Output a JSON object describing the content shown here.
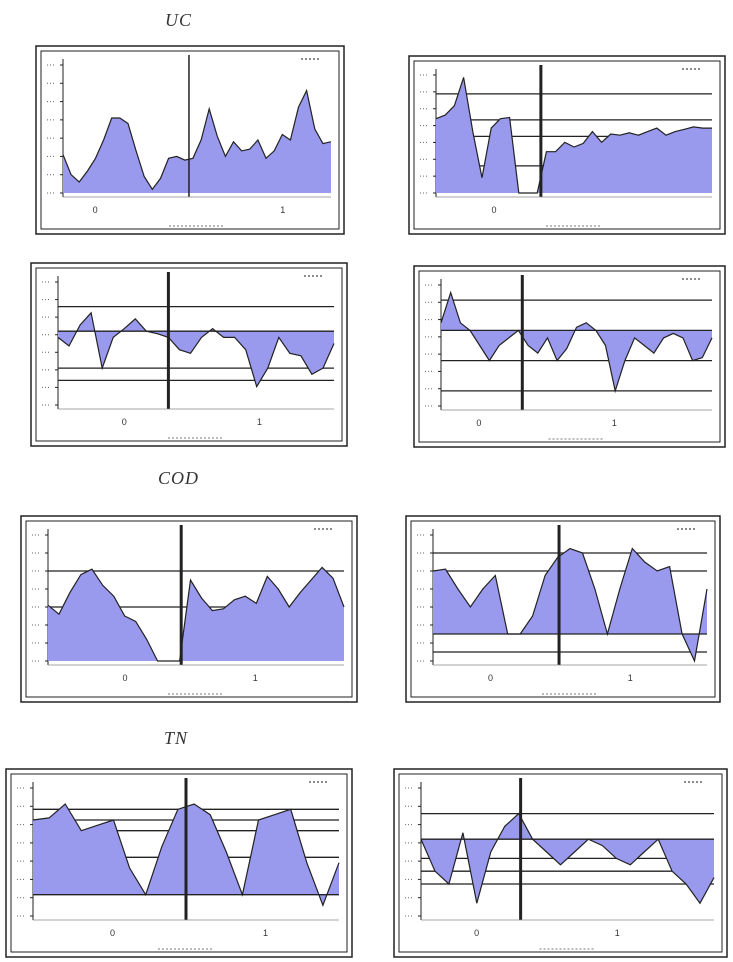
{
  "sections": [
    {
      "title": "UC"
    },
    {
      "title": "COD"
    },
    {
      "title": "TN"
    }
  ],
  "colors": {
    "fill": "#9999ee",
    "line": "#222222",
    "frame": "#222222"
  },
  "chart_data": [
    {
      "type": "area",
      "title": "UC",
      "ylim": [
        0,
        7
      ],
      "yticks": [
        1,
        2,
        3,
        4,
        5,
        6,
        7
      ],
      "zero_line": false,
      "grid_levels": [],
      "divider_x": 0.47,
      "xticks": [
        {
          "x": 0.12,
          "label": "0"
        },
        {
          "x": 0.5,
          "label": ""
        },
        {
          "x": 0.82,
          "label": "1"
        }
      ],
      "xlabel": "",
      "values": [
        2.1,
        1.0,
        0.6,
        1.2,
        1.9,
        2.9,
        4.1,
        4.1,
        3.8,
        2.3,
        0.9,
        0.2,
        0.8,
        1.9,
        2.0,
        1.8,
        1.9,
        2.9,
        4.6,
        3.1,
        2.0,
        2.8,
        2.3,
        2.4,
        2.9,
        1.9,
        2.3,
        3.2,
        2.9,
        4.7,
        5.6,
        3.5,
        2.7,
        2.8
      ]
    },
    {
      "type": "area",
      "title": "UC",
      "ylim": [
        0,
        1
      ],
      "yticks": [],
      "zero_line": false,
      "grid_levels": [
        0.23,
        0.48,
        0.62,
        0.84
      ],
      "divider_x": 0.38,
      "xticks": [
        {
          "x": 0.21,
          "label": "0"
        },
        {
          "x": 0.74,
          "label": ""
        }
      ],
      "xlabel": "",
      "values": [
        0.63,
        0.66,
        0.74,
        0.98,
        0.52,
        0.13,
        0.55,
        0.63,
        0.64,
        0.0,
        0.0,
        0.0,
        0.35,
        0.35,
        0.43,
        0.39,
        0.42,
        0.52,
        0.43,
        0.5,
        0.49,
        0.51,
        0.49,
        0.52,
        0.55,
        0.49,
        0.52,
        0.54,
        0.56,
        0.55,
        0.55
      ]
    },
    {
      "type": "area",
      "title": "UC",
      "ylim": [
        -0.6,
        0.4
      ],
      "yticks": [],
      "zero_line": true,
      "grid_levels": [
        0.2,
        -0.3,
        -0.4
      ],
      "divider_x": 0.4,
      "xticks": [
        {
          "x": 0.24,
          "label": "0"
        },
        {
          "x": 0.73,
          "label": "1"
        }
      ],
      "xlabel": "",
      "values": [
        -0.05,
        -0.12,
        0.05,
        0.15,
        -0.3,
        -0.05,
        0.02,
        0.1,
        0.0,
        -0.02,
        -0.05,
        -0.15,
        -0.18,
        -0.05,
        0.02,
        -0.05,
        -0.05,
        -0.15,
        -0.45,
        -0.3,
        -0.05,
        -0.18,
        -0.2,
        -0.35,
        -0.3,
        -0.1
      ]
    },
    {
      "type": "area",
      "title": "UC",
      "ylim": [
        -0.5,
        0.3
      ],
      "yticks": [],
      "zero_line": true,
      "grid_levels": [
        0.2,
        -0.2,
        -0.4
      ],
      "divider_x": 0.3,
      "xticks": [
        {
          "x": 0.14,
          "label": "0"
        },
        {
          "x": 0.64,
          "label": "1"
        }
      ],
      "xlabel": "",
      "values": [
        0.05,
        0.25,
        0.05,
        0.0,
        -0.1,
        -0.2,
        -0.1,
        -0.05,
        0.0,
        -0.1,
        -0.15,
        -0.05,
        -0.2,
        -0.12,
        0.02,
        0.05,
        0.0,
        -0.1,
        -0.4,
        -0.2,
        -0.05,
        -0.1,
        -0.15,
        -0.05,
        -0.02,
        -0.05,
        -0.2,
        -0.18,
        -0.05
      ]
    },
    {
      "type": "area",
      "title": "COD",
      "ylim": [
        0,
        700
      ],
      "yticks": [],
      "zero_line": false,
      "grid_levels": [
        300,
        500
      ],
      "divider_x": 0.45,
      "xticks": [
        {
          "x": 0.26,
          "label": "0"
        },
        {
          "x": 0.7,
          "label": "1"
        }
      ],
      "xlabel": "",
      "values": [
        310,
        260,
        380,
        480,
        510,
        420,
        360,
        250,
        220,
        120,
        0,
        0,
        0,
        450,
        350,
        280,
        290,
        340,
        360,
        320,
        470,
        400,
        300,
        380,
        450,
        520,
        460,
        300
      ]
    },
    {
      "type": "area",
      "title": "COD",
      "ylim": [
        -0.3,
        1.1
      ],
      "yticks": [],
      "zero_line": true,
      "grid_levels": [
        0.9,
        0.7,
        -0.2
      ],
      "divider_x": 0.46,
      "xticks": [
        {
          "x": 0.21,
          "label": "0"
        },
        {
          "x": 0.72,
          "label": "1"
        }
      ],
      "xlabel": "",
      "values": [
        0.7,
        0.72,
        0.5,
        0.3,
        0.5,
        0.65,
        0.0,
        0.0,
        0.2,
        0.65,
        0.85,
        0.95,
        0.9,
        0.5,
        0.0,
        0.5,
        0.95,
        0.8,
        0.7,
        0.75,
        0.0,
        -0.3,
        0.5
      ]
    },
    {
      "type": "area",
      "title": "TN",
      "ylim": [
        -0.2,
        1.0
      ],
      "yticks": [],
      "zero_line": true,
      "grid_levels": [
        0.8,
        0.7,
        0.6,
        0.35
      ],
      "divider_x": 0.5,
      "xticks": [
        {
          "x": 0.26,
          "label": "0"
        },
        {
          "x": 0.76,
          "label": "1"
        }
      ],
      "xlabel": "",
      "values": [
        0.7,
        0.72,
        0.85,
        0.6,
        0.65,
        0.7,
        0.25,
        0.0,
        0.45,
        0.8,
        0.85,
        0.75,
        0.4,
        0.0,
        0.7,
        0.75,
        0.8,
        0.3,
        -0.1,
        0.3
      ]
    },
    {
      "type": "area",
      "title": "TN",
      "ylim": [
        -0.6,
        0.4
      ],
      "yticks": [],
      "zero_line": true,
      "grid_levels": [
        0.2,
        -0.15,
        -0.25,
        -0.35
      ],
      "divider_x": 0.34,
      "xticks": [
        {
          "x": 0.19,
          "label": "0"
        },
        {
          "x": 0.67,
          "label": "1"
        }
      ],
      "xlabel": "",
      "values": [
        0.0,
        -0.25,
        -0.35,
        0.05,
        -0.5,
        -0.1,
        0.1,
        0.2,
        0.0,
        -0.1,
        -0.2,
        -0.1,
        0.0,
        -0.05,
        -0.15,
        -0.2,
        -0.1,
        0.0,
        -0.25,
        -0.35,
        -0.5,
        -0.3
      ]
    }
  ]
}
